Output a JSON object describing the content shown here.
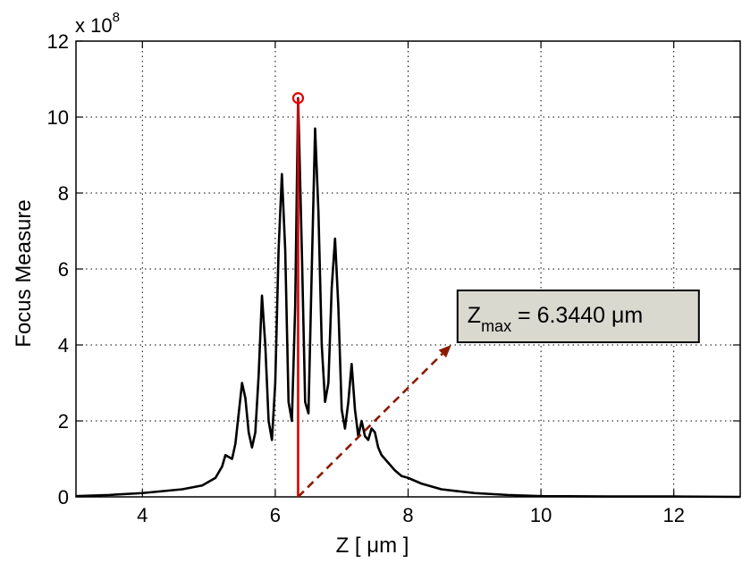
{
  "chart_data": {
    "type": "line",
    "title": "",
    "xlabel": "Z [ μm ]",
    "ylabel": "Focus Measure",
    "xlim": [
      3,
      13
    ],
    "ylim": [
      0,
      12
    ],
    "xticks": [
      4,
      6,
      8,
      10,
      12
    ],
    "yticks": [
      0,
      2,
      4,
      6,
      8,
      10,
      12
    ],
    "y_exponent_base": "x 10",
    "y_exponent_power": "8",
    "grid": true,
    "grid_style": "dotted",
    "line_color": "#000000",
    "series": [
      {
        "x": [
          3.0,
          3.5,
          4.0,
          4.3,
          4.6,
          4.9,
          5.0,
          5.1,
          5.2,
          5.25,
          5.3,
          5.35,
          5.4,
          5.45,
          5.5,
          5.55,
          5.6,
          5.65,
          5.7,
          5.75,
          5.8,
          5.85,
          5.9,
          5.95,
          6.0,
          6.05,
          6.1,
          6.15,
          6.2,
          6.25,
          6.3,
          6.344,
          6.4,
          6.45,
          6.5,
          6.55,
          6.6,
          6.65,
          6.7,
          6.75,
          6.8,
          6.85,
          6.9,
          6.95,
          7.0,
          7.05,
          7.1,
          7.15,
          7.2,
          7.25,
          7.3,
          7.35,
          7.4,
          7.45,
          7.5,
          7.55,
          7.6,
          7.7,
          7.8,
          7.9,
          8.0,
          8.2,
          8.5,
          9.0,
          9.5,
          10.0,
          11.0,
          12.0,
          13.0
        ],
        "y": [
          0.02,
          0.05,
          0.1,
          0.15,
          0.2,
          0.3,
          0.4,
          0.5,
          0.8,
          1.1,
          1.05,
          1.0,
          1.4,
          2.2,
          3.0,
          2.6,
          1.7,
          1.3,
          1.7,
          3.2,
          5.3,
          4.0,
          2.0,
          1.5,
          3.0,
          6.5,
          8.5,
          6.5,
          2.5,
          2.0,
          5.0,
          10.5,
          6.5,
          2.5,
          2.2,
          6.0,
          9.7,
          7.5,
          4.0,
          2.5,
          3.0,
          5.5,
          6.8,
          5.0,
          2.3,
          1.8,
          2.5,
          3.5,
          2.3,
          1.6,
          2.0,
          1.6,
          1.5,
          1.8,
          1.7,
          1.3,
          1.1,
          0.9,
          0.7,
          0.55,
          0.5,
          0.35,
          0.2,
          0.1,
          0.05,
          0.02,
          0.01,
          0.01,
          0.0
        ]
      }
    ],
    "peak": {
      "x": 6.344,
      "y": 10.5,
      "color": "#e00000"
    },
    "annotation": {
      "text_main": "Z",
      "text_sub": "max",
      "text_value": " = 6.3440 μm",
      "box_color": "#d9d9d0",
      "arrow_color": "#8b1a00",
      "arrow_from": [
        6.344,
        0
      ],
      "arrow_to": [
        8.65,
        4.0
      ]
    }
  }
}
